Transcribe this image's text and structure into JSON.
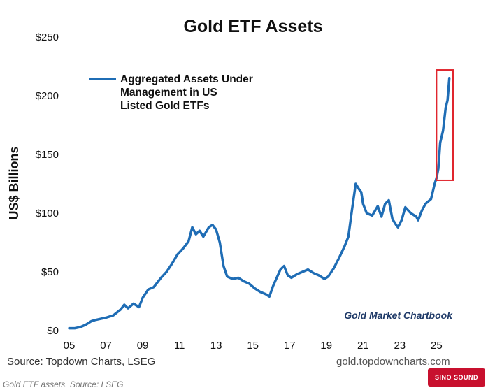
{
  "chart_data": {
    "type": "line",
    "title": "Gold ETF Assets",
    "ylabel": "US$ Billions",
    "ylim": [
      0,
      250
    ],
    "yticks": [
      "$0",
      "$50",
      "$100",
      "$150",
      "$200",
      "$250"
    ],
    "xlim": [
      2005,
      2025.9
    ],
    "xticks": [
      "05",
      "07",
      "09",
      "11",
      "13",
      "15",
      "17",
      "19",
      "21",
      "23",
      "25"
    ],
    "grid": false,
    "legend_position": "top-left",
    "series": [
      {
        "name": "Aggregated Assets Under Management in US Listed Gold ETFs",
        "color": "#1f6db5",
        "x": [
          2005.0,
          2005.3,
          2005.6,
          2005.9,
          2006.2,
          2006.4,
          2006.7,
          2007.0,
          2007.4,
          2007.8,
          2008.0,
          2008.2,
          2008.5,
          2008.8,
          2009.0,
          2009.3,
          2009.6,
          2010.0,
          2010.3,
          2010.6,
          2010.9,
          2011.2,
          2011.5,
          2011.7,
          2011.9,
          2012.1,
          2012.3,
          2012.6,
          2012.8,
          2013.0,
          2013.2,
          2013.4,
          2013.6,
          2013.9,
          2014.2,
          2014.5,
          2014.8,
          2015.1,
          2015.4,
          2015.7,
          2015.9,
          2016.1,
          2016.3,
          2016.5,
          2016.7,
          2016.9,
          2017.1,
          2017.4,
          2017.7,
          2018.0,
          2018.3,
          2018.6,
          2018.9,
          2019.1,
          2019.4,
          2019.7,
          2020.0,
          2020.2,
          2020.4,
          2020.6,
          2020.8,
          2020.9,
          2021.0,
          2021.2,
          2021.5,
          2021.8,
          2022.0,
          2022.2,
          2022.4,
          2022.6,
          2022.8,
          2022.9,
          2023.1,
          2023.3,
          2023.6,
          2023.9,
          2024.0,
          2024.2,
          2024.4,
          2024.7,
          2024.9,
          2025.0,
          2025.1,
          2025.2,
          2025.35,
          2025.5,
          2025.6,
          2025.7
        ],
        "values": [
          2,
          2,
          3,
          5,
          8,
          9,
          10,
          11,
          13,
          18,
          22,
          19,
          23,
          20,
          28,
          35,
          37,
          45,
          50,
          57,
          65,
          70,
          76,
          88,
          82,
          85,
          80,
          88,
          90,
          86,
          75,
          55,
          46,
          44,
          45,
          42,
          40,
          36,
          33,
          31,
          29,
          38,
          45,
          52,
          55,
          47,
          45,
          48,
          50,
          52,
          49,
          47,
          44,
          46,
          53,
          62,
          72,
          80,
          103,
          125,
          120,
          118,
          108,
          100,
          98,
          106,
          97,
          108,
          111,
          95,
          90,
          88,
          94,
          105,
          100,
          97,
          94,
          102,
          108,
          112,
          125,
          130,
          138,
          160,
          170,
          190,
          196,
          215
        ]
      }
    ],
    "annotations": [
      {
        "type": "highlight-box",
        "x_start": 2025.0,
        "x_end": 2025.9,
        "y_start": 128,
        "y_end": 222,
        "color": "#e0262e"
      }
    ],
    "watermark": "Gold Market Chartbook"
  },
  "footer": {
    "source_left": "Source: Topdown Charts, LSEG",
    "site_right": "gold.topdowncharts.com",
    "caption": "Gold ETF assets. Source: LSEG",
    "logo_text": "SINO SOUND"
  }
}
